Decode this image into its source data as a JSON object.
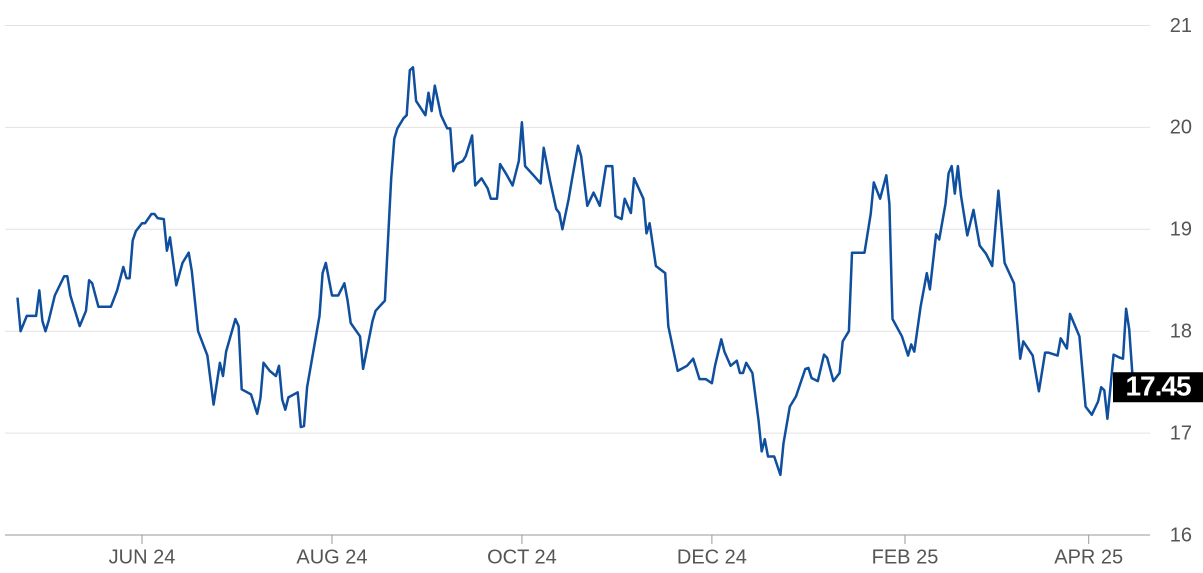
{
  "chart_data": {
    "type": "line",
    "x": [
      -40,
      -39,
      -37,
      -34,
      -33,
      -32,
      -31,
      -30,
      -28,
      -25,
      -24,
      -23,
      -20,
      -18,
      -17,
      -16,
      -14,
      -12,
      -10,
      -8,
      -6,
      -5,
      -4,
      -3,
      -2,
      0,
      1,
      3,
      4,
      5,
      7,
      8,
      9,
      11,
      13,
      15,
      16,
      18,
      21,
      23,
      25,
      26,
      27,
      30,
      31,
      32,
      35,
      37,
      38,
      39,
      41,
      43,
      44,
      45,
      46,
      47,
      50,
      51,
      52,
      53,
      57,
      58,
      59,
      61,
      63,
      65,
      66,
      67,
      70,
      71,
      74,
      75,
      78,
      80,
      81,
      82,
      84,
      85,
      86,
      87,
      88,
      91,
      92,
      93,
      94,
      96,
      98,
      99,
      100,
      101,
      103,
      104,
      106,
      107,
      109,
      111,
      112,
      114,
      115,
      117,
      119,
      121,
      122,
      123,
      126,
      128,
      129,
      131,
      133,
      134,
      135,
      137,
      138,
      140,
      141,
      143,
      145,
      147,
      149,
      151,
      152,
      154,
      155,
      157,
      158,
      161,
      162,
      163,
      165,
      168,
      169,
      172,
      175,
      177,
      179,
      181,
      183,
      184,
      186,
      187,
      189,
      191,
      192,
      193,
      194,
      196,
      198,
      199,
      200,
      201,
      203,
      205,
      206,
      208,
      210,
      213,
      214,
      215,
      217,
      219,
      220,
      222,
      224,
      225,
      227,
      228,
      232,
      234,
      235,
      237,
      239,
      240,
      241,
      244,
      246,
      247,
      248,
      250,
      252,
      253,
      255,
      256,
      258,
      259,
      260,
      261,
      262,
      263,
      265,
      267,
      269,
      271,
      273,
      275,
      277,
      280,
      282,
      283,
      286,
      288,
      290,
      291,
      294,
      295,
      297,
      298,
      301,
      303,
      305,
      307,
      308,
      309,
      310,
      312,
      314,
      315,
      316,
      317,
      318,
      319,
      322
    ],
    "series": [
      {
        "color": "#0f4f9e",
        "values": [
          18.33,
          18,
          18.15,
          18.15,
          18.4,
          18.1,
          18,
          18.1,
          18.35,
          18.54,
          18.54,
          18.35,
          18.05,
          18.2,
          18.5,
          18.47,
          18.24,
          18.24,
          18.24,
          18.4,
          18.63,
          18.52,
          18.52,
          18.89,
          18.98,
          19.06,
          19.06,
          19.15,
          19.15,
          19.11,
          19.1,
          18.79,
          18.92,
          18.45,
          18.67,
          18.77,
          18.59,
          18,
          17.76,
          17.28,
          17.69,
          17.56,
          17.8,
          18.12,
          18.05,
          17.43,
          17.38,
          17.19,
          17.34,
          17.69,
          17.61,
          17.56,
          17.66,
          17.33,
          17.23,
          17.35,
          17.4,
          17.06,
          17.07,
          17.45,
          18.15,
          18.57,
          18.67,
          18.35,
          18.35,
          18.47,
          18.3,
          18.08,
          17.95,
          17.63,
          18.1,
          18.2,
          18.3,
          19.5,
          19.89,
          19.99,
          20.09,
          20.12,
          20.56,
          20.59,
          20.26,
          20.12,
          20.34,
          20.16,
          20.41,
          20.12,
          19.99,
          19.99,
          19.57,
          19.64,
          19.67,
          19.72,
          19.92,
          19.43,
          19.5,
          19.4,
          19.3,
          19.3,
          19.64,
          19.54,
          19.43,
          19.67,
          20.05,
          19.62,
          19.52,
          19.45,
          19.8,
          19.48,
          19.2,
          19.16,
          19,
          19.3,
          19.48,
          19.82,
          19.72,
          19.23,
          19.36,
          19.23,
          19.62,
          19.62,
          19.13,
          19.1,
          19.3,
          19.16,
          19.5,
          19.3,
          18.96,
          19.06,
          18.64,
          18.57,
          18.05,
          17.61,
          17.66,
          17.73,
          17.53,
          17.53,
          17.49,
          17.66,
          17.92,
          17.8,
          17.66,
          17.71,
          17.59,
          17.59,
          17.69,
          17.59,
          17.12,
          16.82,
          16.94,
          16.77,
          16.77,
          16.59,
          16.9,
          17.26,
          17.36,
          17.63,
          17.64,
          17.54,
          17.51,
          17.77,
          17.74,
          17.51,
          17.59,
          17.9,
          18,
          18.77,
          18.77,
          19.15,
          19.46,
          19.3,
          19.53,
          19.25,
          18.12,
          17.95,
          17.76,
          17.87,
          17.8,
          18.24,
          18.57,
          18.41,
          18.95,
          18.9,
          19.25,
          19.55,
          19.62,
          19.35,
          19.62,
          19.33,
          18.94,
          19.19,
          18.84,
          18.76,
          18.64,
          19.38,
          18.67,
          18.47,
          17.73,
          17.9,
          17.76,
          17.41,
          17.79,
          17.79,
          17.76,
          17.93,
          17.83,
          18.17,
          17.95,
          17.26,
          17.18,
          17.31,
          17.45,
          17.42,
          17.14,
          17.77,
          17.74,
          17.73,
          18.22,
          18.02,
          17.59,
          17.51,
          17.45
        ]
      }
    ],
    "xlim": [
      -44,
      324
    ],
    "ylim": [
      16,
      21.25
    ],
    "xticks": [
      {
        "value": 0,
        "label": "JUN 24"
      },
      {
        "value": 61,
        "label": "AUG 24"
      },
      {
        "value": 122,
        "label": "OCT 24"
      },
      {
        "value": 183,
        "label": "DEC 24"
      },
      {
        "value": 245,
        "label": "FEB 25"
      },
      {
        "value": 304,
        "label": "APR 25"
      }
    ],
    "yticks": [
      16,
      17,
      18,
      19,
      20,
      21
    ],
    "grid": true
  }
}
